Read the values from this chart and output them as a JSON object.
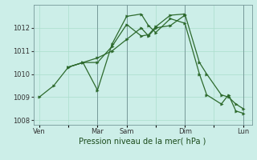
{
  "background_color": "#cceee8",
  "grid_color": "#aaddcc",
  "line_color": "#2d6a2d",
  "marker_color": "#2d6a2d",
  "xlabel": "Pression niveau de la mer( hPa )",
  "ylim": [
    1007.8,
    1013.0
  ],
  "yticks": [
    1008,
    1009,
    1010,
    1011,
    1012
  ],
  "xtick_labels": [
    "Ven",
    "",
    "Mar",
    "Sam",
    "",
    "Dim",
    "",
    "Lun"
  ],
  "xtick_positions": [
    0,
    1,
    2,
    3,
    4,
    5,
    6,
    7
  ],
  "vlines": [
    2,
    3,
    5,
    7
  ],
  "series": [
    {
      "x": [
        0,
        0.5,
        1.0,
        1.5,
        2.0,
        2.5,
        3.0,
        3.5,
        3.75,
        4.0,
        4.5,
        5.0,
        5.5,
        5.75,
        6.25,
        6.5,
        6.75,
        7.0
      ],
      "y": [
        1009.0,
        1009.5,
        1010.3,
        1010.5,
        1009.3,
        1011.3,
        1012.5,
        1012.6,
        1012.1,
        1011.8,
        1012.4,
        1012.2,
        1010.0,
        1009.1,
        1008.7,
        1009.1,
        1008.4,
        1008.3
      ]
    },
    {
      "x": [
        1.0,
        1.5,
        2.0,
        2.5,
        3.0,
        3.5,
        3.75,
        4.0,
        4.5,
        5.0,
        5.5,
        5.75,
        6.25,
        6.5,
        6.75,
        7.0
      ],
      "y": [
        1010.3,
        1010.5,
        1010.5,
        1011.2,
        1012.15,
        1011.65,
        1011.7,
        1012.05,
        1012.55,
        1012.6,
        1010.5,
        1010.0,
        1009.1,
        1009.0,
        1008.7,
        1008.5
      ]
    },
    {
      "x": [
        1.0,
        1.5,
        2.0,
        2.5,
        3.0,
        3.5,
        3.75,
        4.0,
        4.5,
        5.0
      ],
      "y": [
        1010.3,
        1010.5,
        1010.7,
        1011.0,
        1011.5,
        1012.0,
        1011.65,
        1012.0,
        1012.1,
        1012.55
      ]
    }
  ]
}
